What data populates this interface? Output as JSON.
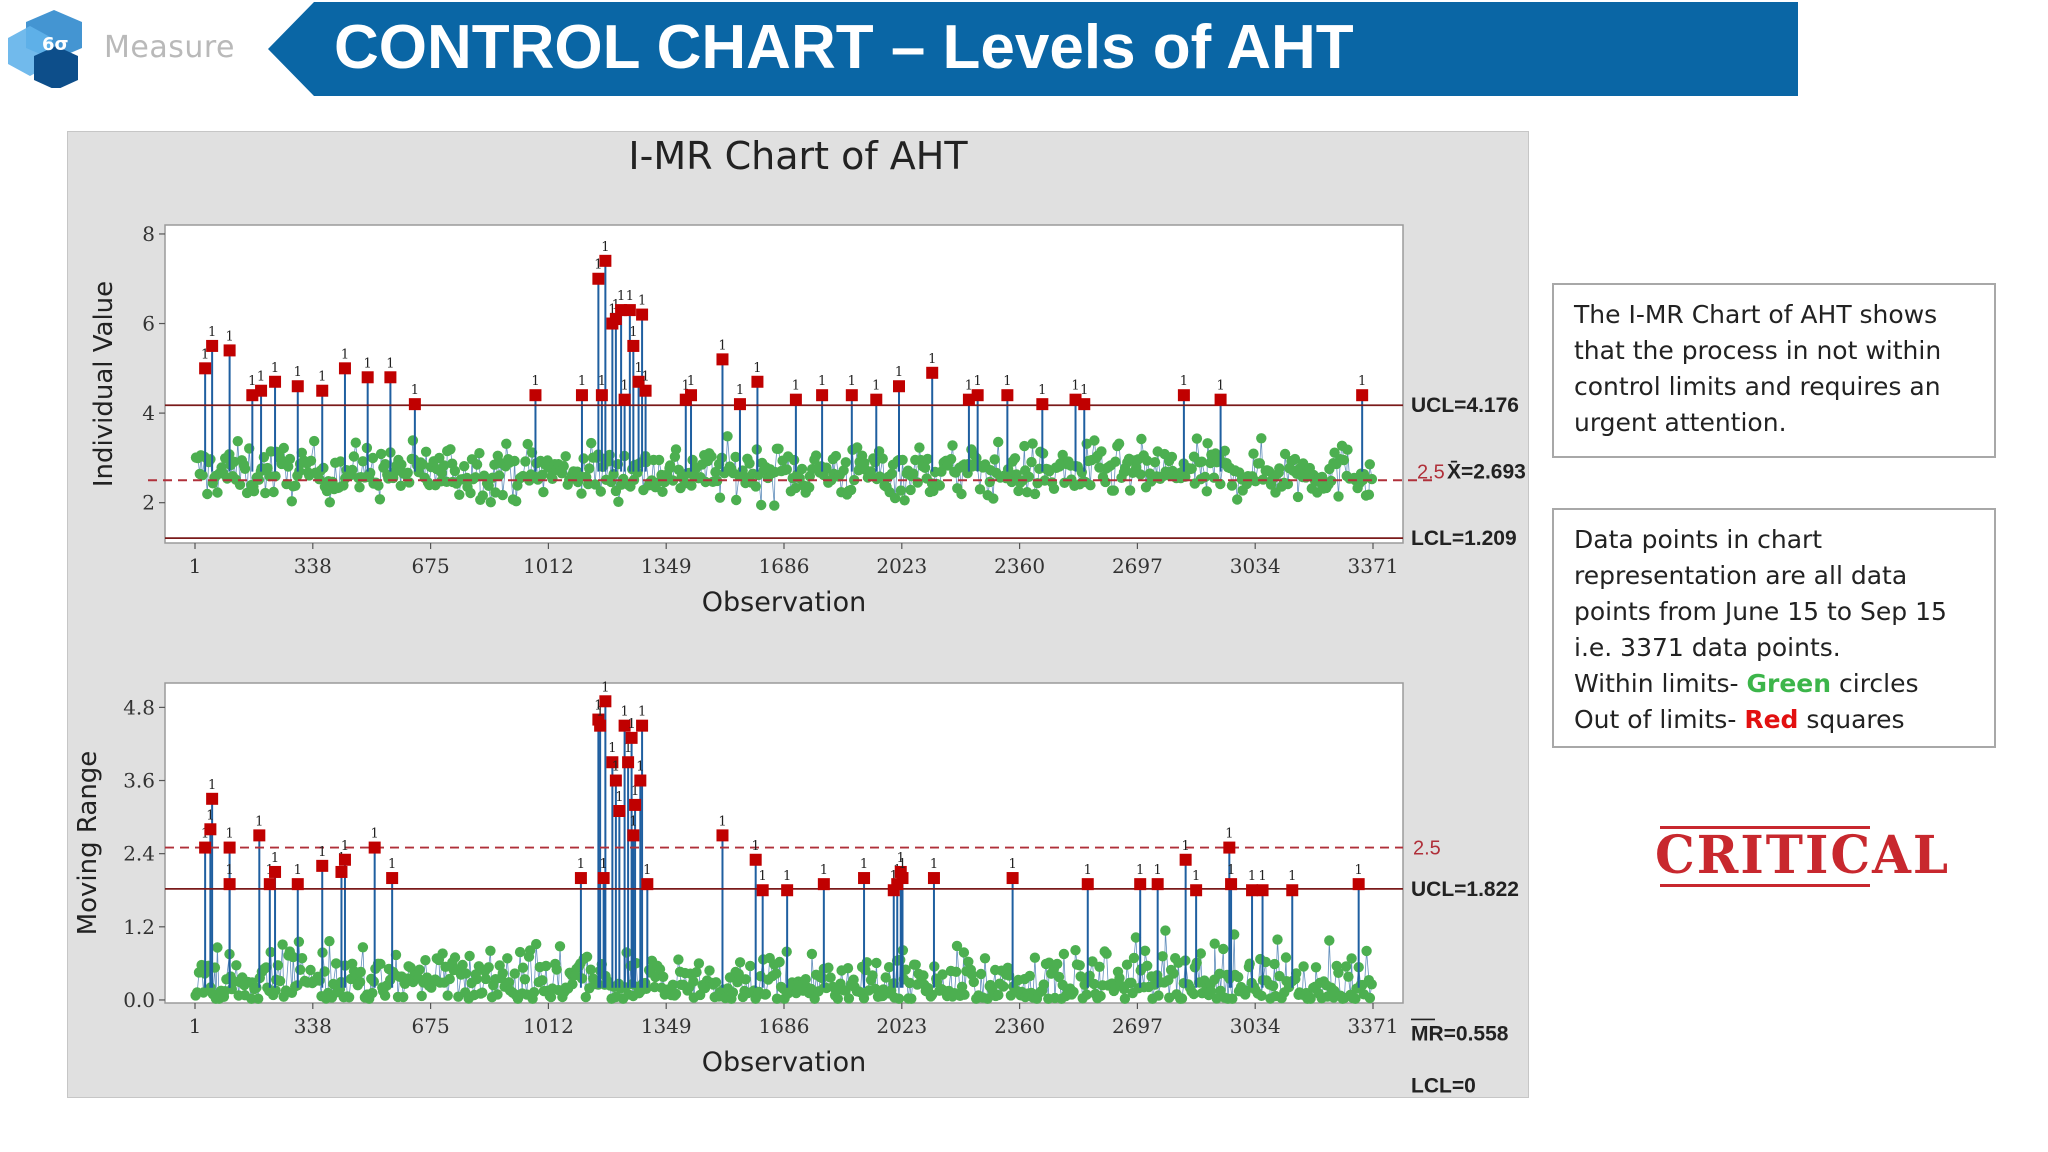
{
  "logo": {
    "badge": "6σ",
    "text": "Measure"
  },
  "slide": {
    "title": "CONTROL CHART – Levels of AHT"
  },
  "colors": {
    "banner": "#0a66a5",
    "in_limits": "#4caf50",
    "out_limits": "#c00000",
    "stem": "#1f5fa0",
    "limit_line": "#7a1a1a"
  },
  "notes": {
    "summary": "The I-MR Chart of AHT shows that the process in not within control limits and requires an urgent attention.",
    "data_line1": "Data points in chart",
    "data_line2": "representation are all data",
    "data_line3": "points from June 15 to Sep 15",
    "data_line4": "i.e. 3371 data points.",
    "within_prefix": "Within limits- ",
    "within_color": "Green",
    "within_suffix": " circles",
    "out_prefix": "Out of limits- ",
    "out_color": "Red",
    "out_suffix": " squares"
  },
  "stamp": {
    "text": "CRITICAL"
  },
  "chart_data": {
    "type": "scatter",
    "title": "I-MR Chart of AHT",
    "n_observations": 3371,
    "x_ticks": [
      1,
      338,
      675,
      1012,
      1349,
      1686,
      2023,
      2360,
      2697,
      3034,
      3371
    ],
    "individual": {
      "ylabel": "Individual Value",
      "xlabel": "Observation",
      "ylim": [
        1.1,
        8.2
      ],
      "yticks": [
        2,
        4,
        6,
        8
      ],
      "UCL": 4.176,
      "mean": 2.693,
      "LCL": 1.209,
      "target": 2.5,
      "ucl_label": "UCL=4.176",
      "mean_label": "X̄=2.693",
      "lcl_label": "LCL=1.209",
      "target_label": "2.5",
      "out_of_control": [
        {
          "x": 30,
          "y": 5.0
        },
        {
          "x": 50,
          "y": 5.5
        },
        {
          "x": 100,
          "y": 5.4
        },
        {
          "x": 165,
          "y": 4.4
        },
        {
          "x": 190,
          "y": 4.5
        },
        {
          "x": 230,
          "y": 4.7
        },
        {
          "x": 295,
          "y": 4.6
        },
        {
          "x": 365,
          "y": 4.5
        },
        {
          "x": 430,
          "y": 5.0
        },
        {
          "x": 495,
          "y": 4.8
        },
        {
          "x": 560,
          "y": 4.8
        },
        {
          "x": 630,
          "y": 4.2
        },
        {
          "x": 975,
          "y": 4.4
        },
        {
          "x": 1108,
          "y": 4.4
        },
        {
          "x": 1155,
          "y": 7.0
        },
        {
          "x": 1175,
          "y": 7.4
        },
        {
          "x": 1165,
          "y": 4.4
        },
        {
          "x": 1195,
          "y": 6.0
        },
        {
          "x": 1205,
          "y": 6.1
        },
        {
          "x": 1220,
          "y": 6.3
        },
        {
          "x": 1230,
          "y": 4.3
        },
        {
          "x": 1245,
          "y": 6.3
        },
        {
          "x": 1255,
          "y": 5.5
        },
        {
          "x": 1270,
          "y": 4.7
        },
        {
          "x": 1280,
          "y": 6.2
        },
        {
          "x": 1290,
          "y": 4.5
        },
        {
          "x": 1405,
          "y": 4.3
        },
        {
          "x": 1420,
          "y": 4.4
        },
        {
          "x": 1510,
          "y": 5.2
        },
        {
          "x": 1560,
          "y": 4.2
        },
        {
          "x": 1610,
          "y": 4.7
        },
        {
          "x": 1720,
          "y": 4.3
        },
        {
          "x": 1795,
          "y": 4.4
        },
        {
          "x": 1880,
          "y": 4.4
        },
        {
          "x": 1950,
          "y": 4.3
        },
        {
          "x": 2015,
          "y": 4.6
        },
        {
          "x": 2110,
          "y": 4.9
        },
        {
          "x": 2215,
          "y": 4.3
        },
        {
          "x": 2240,
          "y": 4.4
        },
        {
          "x": 2325,
          "y": 4.4
        },
        {
          "x": 2425,
          "y": 4.2
        },
        {
          "x": 2520,
          "y": 4.3
        },
        {
          "x": 2545,
          "y": 4.2
        },
        {
          "x": 2830,
          "y": 4.4
        },
        {
          "x": 2935,
          "y": 4.3
        },
        {
          "x": 3340,
          "y": 4.4
        }
      ]
    },
    "moving_range": {
      "ylabel": "Moving Range",
      "xlabel": "Observation",
      "ylim": [
        -0.05,
        5.2
      ],
      "yticks": [
        0.0,
        1.2,
        2.4,
        3.6,
        4.8
      ],
      "ytick_labels": [
        "0.0",
        "1.2",
        "2.4",
        "3.6",
        "4.8"
      ],
      "UCL": 1.822,
      "mean": 0.558,
      "LCL": 0,
      "target": 2.5,
      "ucl_label": "UCL=1.822",
      "mean_label": "MR=0.558",
      "lcl_label": "LCL=0",
      "target_label": "2.5",
      "out_of_control": [
        {
          "x": 30,
          "y": 2.5
        },
        {
          "x": 45,
          "y": 2.8
        },
        {
          "x": 50,
          "y": 3.3
        },
        {
          "x": 100,
          "y": 2.5
        },
        {
          "x": 100,
          "y": 1.9
        },
        {
          "x": 185,
          "y": 2.7
        },
        {
          "x": 215,
          "y": 1.9
        },
        {
          "x": 230,
          "y": 2.1
        },
        {
          "x": 295,
          "y": 1.9
        },
        {
          "x": 365,
          "y": 2.2
        },
        {
          "x": 420,
          "y": 2.1
        },
        {
          "x": 430,
          "y": 2.3
        },
        {
          "x": 515,
          "y": 2.5
        },
        {
          "x": 565,
          "y": 2.0
        },
        {
          "x": 1105,
          "y": 2.0
        },
        {
          "x": 1155,
          "y": 4.6
        },
        {
          "x": 1160,
          "y": 4.5
        },
        {
          "x": 1175,
          "y": 4.9
        },
        {
          "x": 1170,
          "y": 2.0
        },
        {
          "x": 1195,
          "y": 3.9
        },
        {
          "x": 1205,
          "y": 3.6
        },
        {
          "x": 1215,
          "y": 3.1
        },
        {
          "x": 1230,
          "y": 4.5
        },
        {
          "x": 1240,
          "y": 3.9
        },
        {
          "x": 1250,
          "y": 4.3
        },
        {
          "x": 1260,
          "y": 3.2
        },
        {
          "x": 1255,
          "y": 2.7
        },
        {
          "x": 1275,
          "y": 3.6
        },
        {
          "x": 1280,
          "y": 4.5
        },
        {
          "x": 1295,
          "y": 1.9
        },
        {
          "x": 1510,
          "y": 2.7
        },
        {
          "x": 1605,
          "y": 2.3
        },
        {
          "x": 1625,
          "y": 1.8
        },
        {
          "x": 1695,
          "y": 1.8
        },
        {
          "x": 1800,
          "y": 1.9
        },
        {
          "x": 1915,
          "y": 2.0
        },
        {
          "x": 2000,
          "y": 1.8
        },
        {
          "x": 2010,
          "y": 1.9
        },
        {
          "x": 2020,
          "y": 2.1
        },
        {
          "x": 2025,
          "y": 2.0
        },
        {
          "x": 2115,
          "y": 2.0
        },
        {
          "x": 2340,
          "y": 2.0
        },
        {
          "x": 2555,
          "y": 1.9
        },
        {
          "x": 2705,
          "y": 1.9
        },
        {
          "x": 2755,
          "y": 1.9
        },
        {
          "x": 2835,
          "y": 2.3
        },
        {
          "x": 2865,
          "y": 1.8
        },
        {
          "x": 2960,
          "y": 2.5
        },
        {
          "x": 2965,
          "y": 1.9
        },
        {
          "x": 3025,
          "y": 1.8
        },
        {
          "x": 3055,
          "y": 1.8
        },
        {
          "x": 3140,
          "y": 1.8
        },
        {
          "x": 3330,
          "y": 1.9
        }
      ]
    }
  }
}
